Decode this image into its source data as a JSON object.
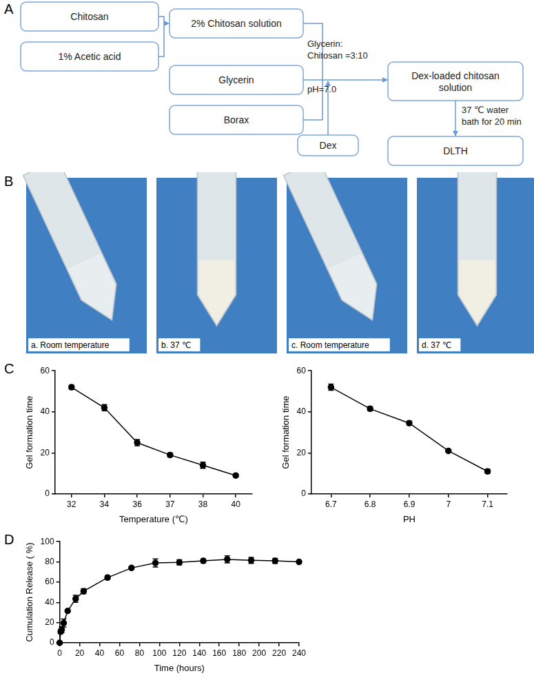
{
  "panels": [
    "A",
    "B",
    "C",
    "D"
  ],
  "flowchart": {
    "nodes": [
      [
        "Chitosan"
      ],
      [
        "1% Acetic acid"
      ],
      [
        "2% Chitosan solution"
      ],
      [
        "Glycerin"
      ],
      [
        "Borax"
      ],
      [
        "Dex"
      ],
      [
        "Dex-loaded chitosan",
        "solution"
      ],
      [
        "DLTH"
      ]
    ],
    "edge_labels": [
      [
        "Glycerin:",
        "Chitosan =3:10"
      ],
      [
        "pH=7.0"
      ],
      [
        "37 ℃ water",
        "bath for 20 min"
      ]
    ]
  },
  "photos": {
    "captions": [
      "a. Room temperature",
      "b. 37 ℃",
      "c. Room temperature",
      "d. 37 ℃"
    ]
  },
  "chart_data": [
    {
      "type": "line",
      "categories": [
        "32",
        "34",
        "36",
        "37",
        "38",
        "40"
      ],
      "values": [
        52,
        42,
        25,
        19,
        14,
        9
      ],
      "errors": [
        1,
        1.5,
        1.5,
        1,
        1.5,
        0.8
      ],
      "xlabel": "Temperature (℃)",
      "ylabel": "Gel formation time",
      "ylim": [
        0,
        60
      ],
      "yticks": [
        0,
        20,
        40,
        60
      ],
      "grid": false,
      "color": "#000000",
      "marker": "circle",
      "line_style": "solid"
    },
    {
      "type": "line",
      "categories": [
        "6.7",
        "6.8",
        "6.9",
        "7",
        "7.1"
      ],
      "values": [
        52,
        41.5,
        34.5,
        21,
        11
      ],
      "errors": [
        1.5,
        1,
        1,
        0.5,
        1
      ],
      "xlabel": "PH",
      "ylabel": "Gel formation time",
      "ylim": [
        0,
        60
      ],
      "yticks": [
        0,
        20,
        40,
        60
      ],
      "grid": false,
      "color": "#000000",
      "marker": "circle",
      "line_style": "solid"
    },
    {
      "type": "line",
      "x": [
        0,
        1,
        2,
        4,
        8,
        16,
        24,
        48,
        72,
        96,
        120,
        144,
        168,
        192,
        216,
        240
      ],
      "values": [
        0,
        11,
        13,
        19.5,
        31.5,
        43.5,
        51,
        64.5,
        74,
        79,
        79.5,
        81,
        82.5,
        81.5,
        81,
        80
      ],
      "errors": [
        0,
        2,
        3,
        4,
        1,
        3.5,
        2.5,
        2,
        1,
        4,
        2.5,
        2,
        3.5,
        3,
        2.5,
        0.5
      ],
      "xlabel": "Time (hours)",
      "ylabel": "Cumulation Release ( %)",
      "xlim": [
        0,
        240
      ],
      "xticks": [
        0,
        20,
        40,
        60,
        80,
        100,
        120,
        140,
        160,
        180,
        200,
        220,
        240
      ],
      "ylim": [
        0,
        100
      ],
      "yticks": [
        0,
        20,
        40,
        60,
        80,
        100
      ],
      "grid": false,
      "color": "#000000",
      "marker": "circle",
      "line_style": "solid"
    }
  ]
}
